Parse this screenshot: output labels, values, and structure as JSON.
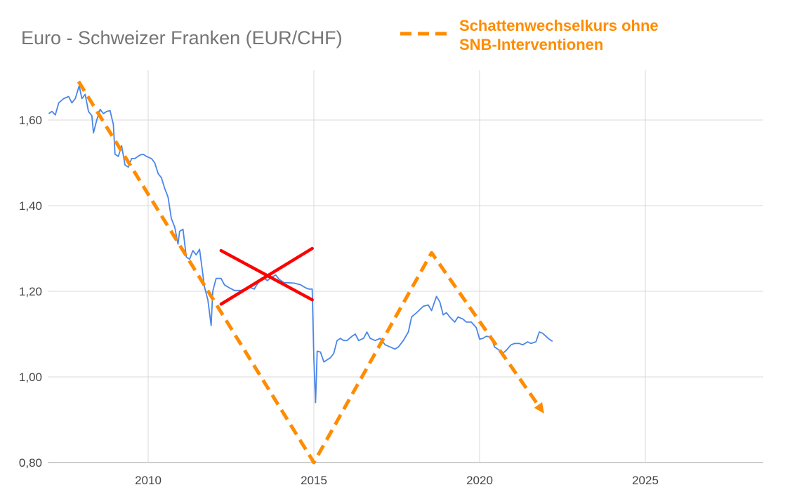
{
  "chart_data": {
    "type": "line",
    "title": "Euro - Schweizer Franken (EUR/CHF)",
    "xlabel": "",
    "ylabel": "",
    "xlim": [
      2007.0,
      2028.5
    ],
    "ylim": [
      0.8,
      1.7
    ],
    "x_ticks": [
      2010,
      2015,
      2020,
      2025
    ],
    "x_tick_labels": [
      "2010",
      "2015",
      "2020",
      "2025"
    ],
    "y_ticks": [
      0.8,
      1.0,
      1.2,
      1.4,
      1.6
    ],
    "y_tick_labels": [
      "0,80",
      "1,00",
      "1,20",
      "1,40",
      "1,60"
    ],
    "grid": true,
    "legend": {
      "position": "top-right",
      "entries": [
        {
          "label_line1": "Schattenwechselkurs ohne",
          "label_line2": "SNB-Interventionen",
          "color": "#ff8c00",
          "style": "dashed"
        }
      ]
    },
    "series": [
      {
        "color": "#4a86e8",
        "style": "solid",
        "points": [
          [
            2007.0,
            1.615
          ],
          [
            2007.1,
            1.62
          ],
          [
            2007.2,
            1.612
          ],
          [
            2007.3,
            1.64
          ],
          [
            2007.45,
            1.65
          ],
          [
            2007.6,
            1.655
          ],
          [
            2007.7,
            1.64
          ],
          [
            2007.8,
            1.65
          ],
          [
            2007.92,
            1.68
          ],
          [
            2008.0,
            1.65
          ],
          [
            2008.1,
            1.66
          ],
          [
            2008.2,
            1.62
          ],
          [
            2008.3,
            1.61
          ],
          [
            2008.35,
            1.57
          ],
          [
            2008.45,
            1.6
          ],
          [
            2008.55,
            1.625
          ],
          [
            2008.65,
            1.615
          ],
          [
            2008.75,
            1.62
          ],
          [
            2008.85,
            1.622
          ],
          [
            2008.95,
            1.59
          ],
          [
            2009.0,
            1.52
          ],
          [
            2009.1,
            1.515
          ],
          [
            2009.2,
            1.54
          ],
          [
            2009.3,
            1.495
          ],
          [
            2009.4,
            1.49
          ],
          [
            2009.5,
            1.51
          ],
          [
            2009.6,
            1.51
          ],
          [
            2009.75,
            1.518
          ],
          [
            2009.85,
            1.52
          ],
          [
            2009.95,
            1.515
          ],
          [
            2010.1,
            1.51
          ],
          [
            2010.2,
            1.5
          ],
          [
            2010.3,
            1.475
          ],
          [
            2010.4,
            1.465
          ],
          [
            2010.5,
            1.44
          ],
          [
            2010.6,
            1.42
          ],
          [
            2010.7,
            1.37
          ],
          [
            2010.8,
            1.35
          ],
          [
            2010.9,
            1.31
          ],
          [
            2010.95,
            1.34
          ],
          [
            2011.05,
            1.345
          ],
          [
            2011.15,
            1.28
          ],
          [
            2011.25,
            1.275
          ],
          [
            2011.35,
            1.295
          ],
          [
            2011.45,
            1.285
          ],
          [
            2011.55,
            1.298
          ],
          [
            2011.7,
            1.21
          ],
          [
            2011.8,
            1.18
          ],
          [
            2011.9,
            1.12
          ],
          [
            2011.95,
            1.2
          ],
          [
            2012.05,
            1.23
          ],
          [
            2012.2,
            1.23
          ],
          [
            2012.3,
            1.215
          ],
          [
            2012.45,
            1.208
          ],
          [
            2012.6,
            1.202
          ],
          [
            2012.8,
            1.202
          ],
          [
            2012.95,
            1.205
          ],
          [
            2013.05,
            1.21
          ],
          [
            2013.2,
            1.205
          ],
          [
            2013.4,
            1.23
          ],
          [
            2013.5,
            1.23
          ],
          [
            2013.6,
            1.225
          ],
          [
            2013.7,
            1.232
          ],
          [
            2013.85,
            1.238
          ],
          [
            2013.95,
            1.228
          ],
          [
            2014.1,
            1.22
          ],
          [
            2014.2,
            1.22
          ],
          [
            2014.4,
            1.219
          ],
          [
            2014.6,
            1.215
          ],
          [
            2014.75,
            1.208
          ],
          [
            2014.85,
            1.205
          ],
          [
            2014.95,
            1.205
          ],
          [
            2015.0,
            1.04
          ],
          [
            2015.05,
            0.94
          ],
          [
            2015.1,
            1.06
          ],
          [
            2015.2,
            1.058
          ],
          [
            2015.3,
            1.035
          ],
          [
            2015.4,
            1.04
          ],
          [
            2015.5,
            1.045
          ],
          [
            2015.6,
            1.055
          ],
          [
            2015.7,
            1.085
          ],
          [
            2015.8,
            1.09
          ],
          [
            2015.9,
            1.085
          ],
          [
            2016.0,
            1.085
          ],
          [
            2016.15,
            1.095
          ],
          [
            2016.25,
            1.1
          ],
          [
            2016.35,
            1.085
          ],
          [
            2016.5,
            1.09
          ],
          [
            2016.6,
            1.105
          ],
          [
            2016.7,
            1.09
          ],
          [
            2016.85,
            1.085
          ],
          [
            2017.0,
            1.09
          ],
          [
            2017.15,
            1.075
          ],
          [
            2017.3,
            1.07
          ],
          [
            2017.45,
            1.065
          ],
          [
            2017.55,
            1.07
          ],
          [
            2017.7,
            1.085
          ],
          [
            2017.85,
            1.105
          ],
          [
            2017.95,
            1.14
          ],
          [
            2018.1,
            1.15
          ],
          [
            2018.3,
            1.165
          ],
          [
            2018.45,
            1.168
          ],
          [
            2018.55,
            1.155
          ],
          [
            2018.7,
            1.188
          ],
          [
            2018.8,
            1.175
          ],
          [
            2018.9,
            1.145
          ],
          [
            2019.0,
            1.15
          ],
          [
            2019.1,
            1.14
          ],
          [
            2019.25,
            1.128
          ],
          [
            2019.35,
            1.14
          ],
          [
            2019.5,
            1.135
          ],
          [
            2019.6,
            1.128
          ],
          [
            2019.75,
            1.128
          ],
          [
            2019.9,
            1.115
          ],
          [
            2020.0,
            1.088
          ],
          [
            2020.1,
            1.09
          ],
          [
            2020.2,
            1.095
          ],
          [
            2020.35,
            1.093
          ],
          [
            2020.45,
            1.07
          ],
          [
            2020.6,
            1.062
          ],
          [
            2020.7,
            1.055
          ],
          [
            2020.8,
            1.062
          ],
          [
            2020.95,
            1.075
          ],
          [
            2021.05,
            1.078
          ],
          [
            2021.2,
            1.078
          ],
          [
            2021.3,
            1.075
          ],
          [
            2021.45,
            1.082
          ],
          [
            2021.55,
            1.078
          ],
          [
            2021.7,
            1.082
          ],
          [
            2021.8,
            1.105
          ],
          [
            2021.9,
            1.102
          ],
          [
            2022.0,
            1.095
          ],
          [
            2022.1,
            1.088
          ],
          [
            2022.2,
            1.083
          ]
        ]
      },
      {
        "color": "#ff8c00",
        "style": "dashed",
        "points": [
          [
            2007.9,
            1.69
          ],
          [
            2015.0,
            0.8
          ],
          [
            2018.55,
            1.29
          ],
          [
            2021.85,
            0.925
          ]
        ]
      }
    ],
    "annotations": [
      {
        "type": "x-mark",
        "color": "#ff0000",
        "segments": [
          [
            [
              2012.2,
              1.295
            ],
            [
              2014.95,
              1.18
            ]
          ],
          [
            [
              2012.2,
              1.17
            ],
            [
              2014.95,
              1.3
            ]
          ]
        ]
      }
    ]
  }
}
